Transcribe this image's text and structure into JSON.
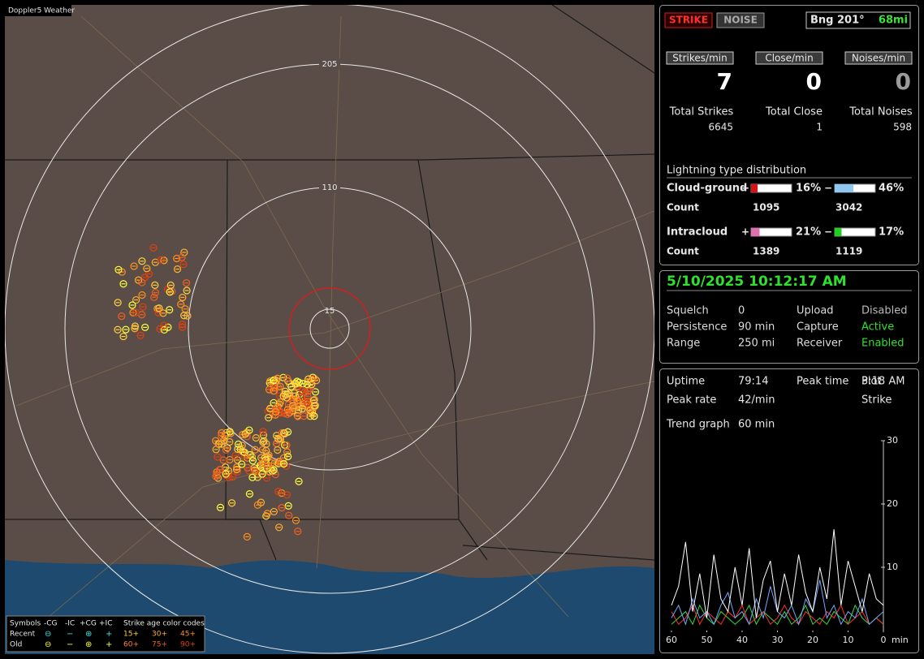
{
  "map": {
    "label": "Doppler5 Weather",
    "ring_labels": [
      "205",
      "110",
      "15"
    ],
    "legend": {
      "header": [
        "Symbols",
        "-CG",
        "-IC",
        "+CG",
        "+IC",
        "Strike age color codes"
      ],
      "recent": {
        "label": "Recent",
        "symbols": [
          "⊖",
          "−",
          "⊕",
          "+"
        ],
        "ages": [
          "15+",
          "30+",
          "45+"
        ]
      },
      "old": {
        "label": "Old",
        "symbols": [
          "⊖",
          "−",
          "⊕",
          "+"
        ],
        "ages": [
          "60+",
          "75+",
          "90+"
        ]
      }
    }
  },
  "status": {
    "strike_button": "STRIKE",
    "noise_button": "NOISE",
    "bearing": "Bng 201°",
    "distance": "68mi"
  },
  "rates": [
    {
      "label": "Strikes/min",
      "value": 7
    },
    {
      "label": "Close/min",
      "value": 0
    },
    {
      "label": "Noises/min",
      "value": 0
    }
  ],
  "totals": [
    {
      "label": "Total Strikes",
      "value": 6645
    },
    {
      "label": "Total Close",
      "value": 1
    },
    {
      "label": "Total Noises",
      "value": 598
    }
  ],
  "distribution": {
    "title": "Lightning type distribution",
    "count_label": "Count",
    "rows": [
      {
        "label": "Cloud-ground",
        "pos_sign": "+",
        "neg_sign": "−",
        "pos_pct": {
          "value": 16,
          "label": "16%"
        },
        "neg_pct": {
          "value": 46,
          "label": "46%"
        },
        "pos_color": "#e01010",
        "neg_color": "#8ec8f0",
        "pos_count": 1095,
        "neg_count": 3042
      },
      {
        "label": "Intracloud",
        "pos_sign": "+",
        "neg_sign": "−",
        "pos_pct": {
          "value": 21,
          "label": "21%"
        },
        "neg_pct": {
          "value": 17,
          "label": "17%"
        },
        "pos_color": "#e070b0",
        "neg_color": "#20d020",
        "pos_count": 1389,
        "neg_count": 1119
      }
    ]
  },
  "settings": {
    "datetime": "5/10/2025 10:12:17 AM",
    "rows": [
      [
        "Squelch",
        "0",
        "Upload",
        "Disabled"
      ],
      [
        "Persistence",
        "90 min",
        "Capture",
        "Active"
      ],
      [
        "Range",
        "250 mi",
        "Receiver",
        "Enabled"
      ]
    ]
  },
  "stats": {
    "rows": [
      [
        "Uptime",
        "79:14",
        "Peak time",
        "3:18 AM",
        "Plot"
      ],
      [
        "Peak rate",
        "42/min",
        "Strike"
      ]
    ],
    "trend_label": "Trend graph",
    "trend_value": "60 min"
  },
  "chart_data": {
    "type": "line",
    "x_label": "min",
    "x": [
      60,
      58,
      56,
      54,
      52,
      50,
      48,
      46,
      44,
      42,
      40,
      38,
      36,
      34,
      32,
      30,
      28,
      26,
      24,
      22,
      20,
      18,
      16,
      14,
      12,
      10,
      8,
      6,
      4,
      2,
      0
    ],
    "xlim": [
      60,
      0
    ],
    "xticks": [
      60,
      50,
      40,
      30,
      20,
      10,
      0
    ],
    "ylim": [
      0,
      30
    ],
    "yticks": [
      10,
      20,
      30
    ],
    "series": [
      {
        "color": "#ffffff",
        "values": [
          4,
          7,
          14,
          3,
          9,
          2,
          12,
          5,
          3,
          10,
          4,
          13,
          2,
          8,
          11,
          3,
          9,
          4,
          12,
          6,
          3,
          10,
          5,
          16,
          4,
          11,
          7,
          3,
          9,
          5,
          4
        ]
      },
      {
        "color": "#6fa8ff",
        "values": [
          2,
          4,
          1,
          5,
          2,
          3,
          1,
          4,
          6,
          2,
          3,
          1,
          5,
          2,
          7,
          3,
          2,
          4,
          1,
          5,
          3,
          8,
          2,
          4,
          1,
          3,
          2,
          5,
          1,
          2,
          3
        ]
      },
      {
        "color": "#ff3030",
        "values": [
          3,
          1,
          2,
          4,
          1,
          3,
          2,
          1,
          3,
          2,
          4,
          1,
          2,
          3,
          1,
          2,
          4,
          2,
          1,
          3,
          2,
          1,
          3,
          2,
          4,
          1,
          2,
          3,
          1,
          2,
          1
        ]
      },
      {
        "color": "#30e030",
        "values": [
          1,
          2,
          3,
          1,
          4,
          2,
          1,
          3,
          2,
          1,
          2,
          4,
          1,
          3,
          2,
          1,
          3,
          1,
          2,
          4,
          1,
          2,
          1,
          3,
          2,
          1,
          4,
          2,
          1,
          2,
          1
        ]
      }
    ]
  }
}
